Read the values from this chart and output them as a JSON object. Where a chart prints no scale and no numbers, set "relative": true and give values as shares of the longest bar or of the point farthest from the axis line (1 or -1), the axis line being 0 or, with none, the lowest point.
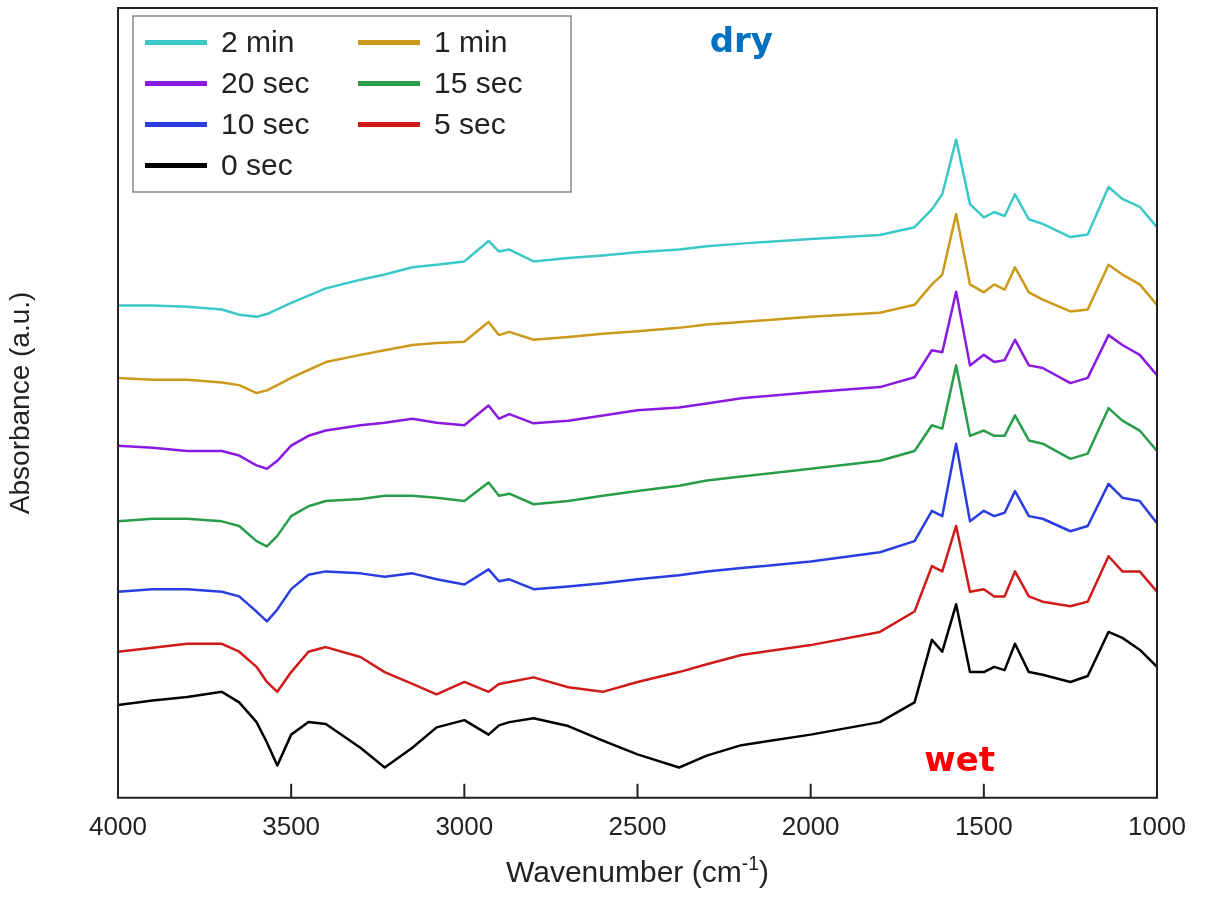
{
  "chart_data": {
    "type": "line",
    "relative": true,
    "xlabel": "Wavenumber (cm$^{-1}$)",
    "ylabel": "Absorbance (a.u.)",
    "xlim": [
      4000,
      1000
    ],
    "xticks": [
      4000,
      3500,
      3000,
      2500,
      2000,
      1500,
      1000
    ],
    "x": [
      4000,
      3900,
      3800,
      3700,
      3650,
      3600,
      3570,
      3540,
      3500,
      3450,
      3400,
      3300,
      3230,
      3150,
      3080,
      3000,
      2930,
      2900,
      2870,
      2800,
      2700,
      2600,
      2500,
      2380,
      2300,
      2200,
      2000,
      1800,
      1700,
      1650,
      1620,
      1580,
      1540,
      1500,
      1470,
      1440,
      1410,
      1370,
      1330,
      1250,
      1200,
      1140,
      1100,
      1050,
      1000
    ],
    "legend": "top left",
    "grid": false,
    "marker": "none",
    "line_style": "solid",
    "tick_labels": "x",
    "annotations": [
      "dry",
      "wet"
    ],
    "series": [
      {
        "name": "2 min",
        "color": "#3cc8c8",
        "values": [
          0.748,
          0.748,
          0.746,
          0.742,
          0.734,
          0.731,
          0.735,
          0.742,
          0.752,
          0.763,
          0.774,
          0.787,
          0.795,
          0.806,
          0.81,
          0.815,
          0.846,
          0.83,
          0.833,
          0.815,
          0.82,
          0.824,
          0.829,
          0.833,
          0.838,
          0.842,
          0.849,
          0.855,
          0.867,
          0.894,
          0.917,
          1,
          0.902,
          0.882,
          0.89,
          0.884,
          0.917,
          0.879,
          0.872,
          0.852,
          0.856,
          0.928,
          0.91,
          0.898,
          0.867
        ]
      },
      {
        "name": "1 min",
        "color": "#cc9a1a",
        "values": [
          0.638,
          0.635,
          0.635,
          0.631,
          0.627,
          0.615,
          0.619,
          0.627,
          0.638,
          0.65,
          0.662,
          0.673,
          0.68,
          0.688,
          0.691,
          0.693,
          0.723,
          0.703,
          0.708,
          0.696,
          0.7,
          0.705,
          0.709,
          0.714,
          0.719,
          0.723,
          0.731,
          0.737,
          0.749,
          0.78,
          0.795,
          0.887,
          0.78,
          0.768,
          0.78,
          0.772,
          0.806,
          0.768,
          0.757,
          0.739,
          0.742,
          0.81,
          0.795,
          0.78,
          0.749
        ]
      },
      {
        "name": "20 sec",
        "color": "#8a1ae0",
        "values": [
          0.535,
          0.532,
          0.527,
          0.527,
          0.52,
          0.505,
          0.5,
          0.512,
          0.535,
          0.55,
          0.558,
          0.566,
          0.57,
          0.576,
          0.57,
          0.566,
          0.596,
          0.576,
          0.583,
          0.569,
          0.573,
          0.581,
          0.589,
          0.593,
          0.599,
          0.607,
          0.616,
          0.624,
          0.639,
          0.68,
          0.677,
          0.769,
          0.657,
          0.673,
          0.662,
          0.665,
          0.696,
          0.657,
          0.653,
          0.63,
          0.638,
          0.703,
          0.688,
          0.673,
          0.642
        ]
      },
      {
        "name": "15 sec",
        "color": "#2a9d4a",
        "values": [
          0.42,
          0.424,
          0.424,
          0.42,
          0.413,
          0.39,
          0.382,
          0.398,
          0.428,
          0.443,
          0.451,
          0.454,
          0.459,
          0.459,
          0.456,
          0.451,
          0.479,
          0.459,
          0.462,
          0.446,
          0.451,
          0.459,
          0.466,
          0.474,
          0.482,
          0.488,
          0.5,
          0.512,
          0.527,
          0.566,
          0.561,
          0.657,
          0.55,
          0.558,
          0.55,
          0.55,
          0.581,
          0.543,
          0.538,
          0.515,
          0.523,
          0.592,
          0.573,
          0.558,
          0.527
        ]
      },
      {
        "name": "10 sec",
        "color": "#2a3de0",
        "values": [
          0.313,
          0.317,
          0.317,
          0.313,
          0.306,
          0.283,
          0.268,
          0.286,
          0.317,
          0.339,
          0.344,
          0.341,
          0.336,
          0.341,
          0.332,
          0.324,
          0.347,
          0.329,
          0.332,
          0.317,
          0.321,
          0.326,
          0.332,
          0.338,
          0.344,
          0.349,
          0.359,
          0.373,
          0.39,
          0.436,
          0.428,
          0.538,
          0.42,
          0.436,
          0.428,
          0.433,
          0.466,
          0.428,
          0.424,
          0.405,
          0.413,
          0.477,
          0.456,
          0.451,
          0.417
        ]
      },
      {
        "name": "5 sec",
        "color": "#d01a1a",
        "values": [
          0.222,
          0.228,
          0.234,
          0.234,
          0.222,
          0.199,
          0.176,
          0.161,
          0.191,
          0.222,
          0.229,
          0.214,
          0.191,
          0.173,
          0.157,
          0.176,
          0.161,
          0.173,
          0.176,
          0.183,
          0.168,
          0.161,
          0.176,
          0.191,
          0.203,
          0.217,
          0.232,
          0.252,
          0.283,
          0.352,
          0.344,
          0.413,
          0.313,
          0.317,
          0.306,
          0.306,
          0.344,
          0.306,
          0.298,
          0.291,
          0.298,
          0.367,
          0.344,
          0.344,
          0.313
        ]
      },
      {
        "name": "0 sec",
        "color": "#000000",
        "values": [
          0.141,
          0.148,
          0.153,
          0.161,
          0.145,
          0.115,
          0.084,
          0.049,
          0.096,
          0.115,
          0.112,
          0.076,
          0.046,
          0.076,
          0.107,
          0.118,
          0.096,
          0.11,
          0.115,
          0.121,
          0.109,
          0.087,
          0.066,
          0.046,
          0.064,
          0.08,
          0.096,
          0.115,
          0.145,
          0.24,
          0.222,
          0.294,
          0.191,
          0.191,
          0.199,
          0.194,
          0.234,
          0.191,
          0.187,
          0.176,
          0.185,
          0.252,
          0.243,
          0.225,
          0.199
        ]
      }
    ]
  }
}
